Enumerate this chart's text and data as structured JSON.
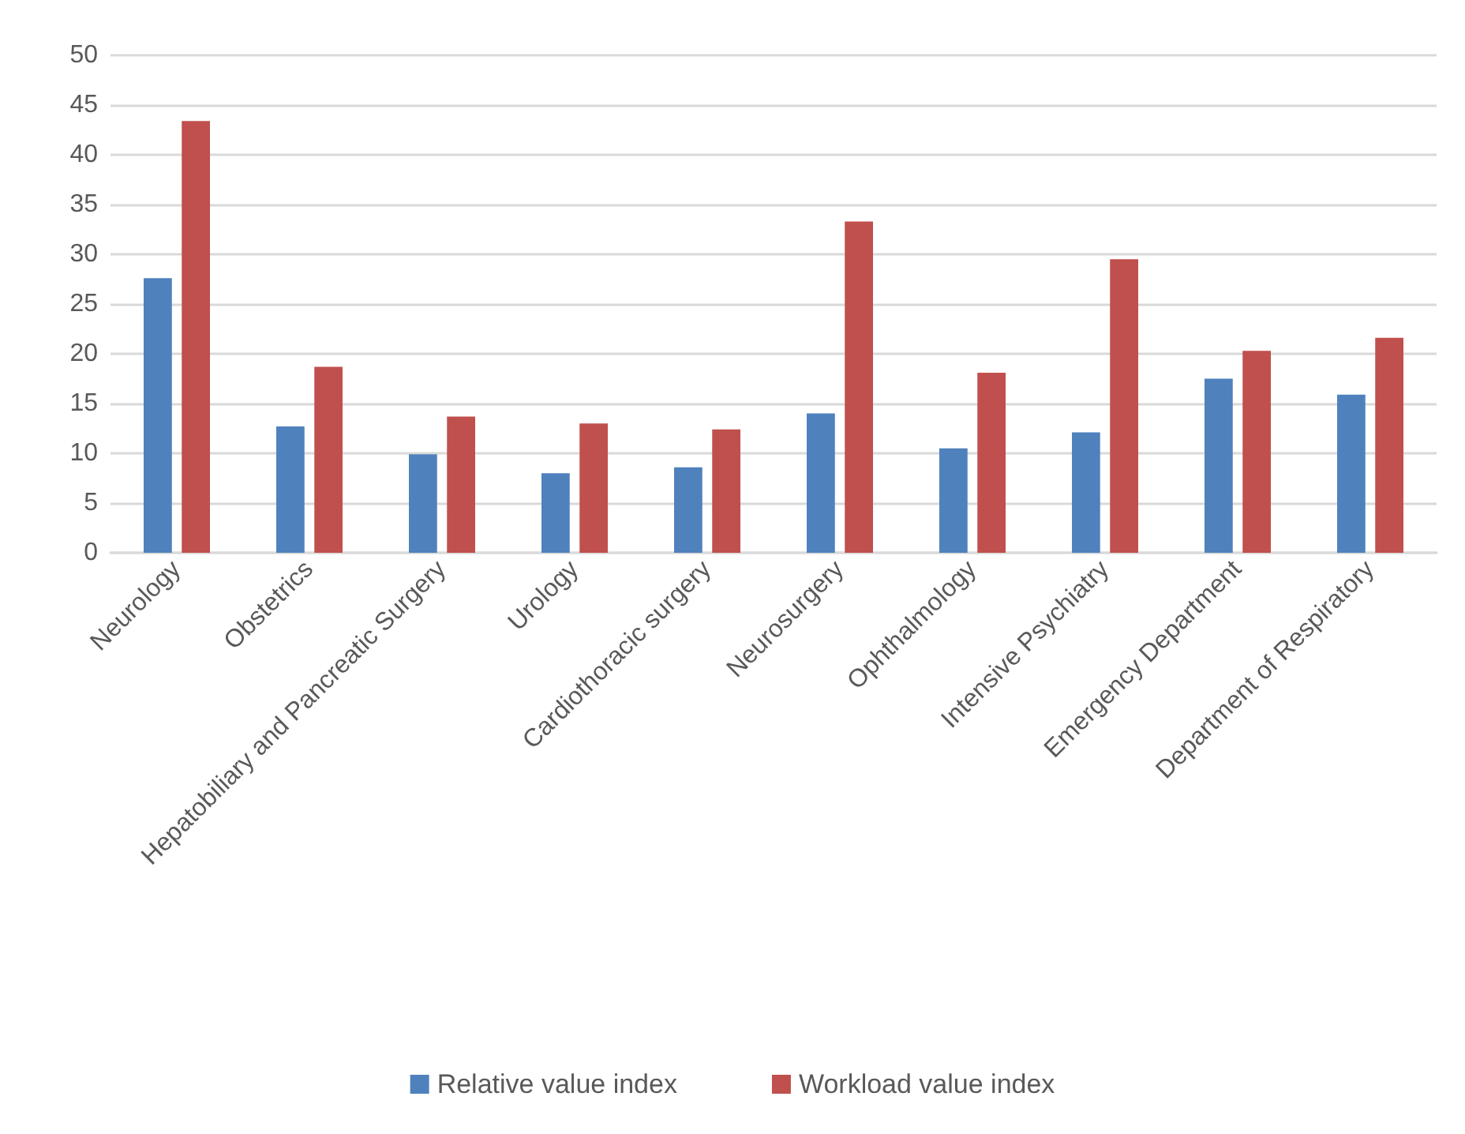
{
  "chart_data": {
    "type": "bar",
    "categories": [
      "Neurology",
      "Obstetrics",
      "Hepatobiliary and Pancreatic Surgery",
      "Urology",
      "Cardiothoracic surgery",
      "Neurosurgery",
      "Ophthalmology",
      "Intensive Psychiatry",
      "Emergency Department",
      "Department of Respiratory"
    ],
    "series": [
      {
        "name": "Relative value index",
        "color": "#4f81bd",
        "values": [
          27.6,
          12.7,
          9.9,
          8.0,
          8.6,
          14.0,
          10.5,
          12.1,
          17.5,
          15.9
        ]
      },
      {
        "name": "Workload value index",
        "color": "#c0504d",
        "values": [
          43.4,
          18.7,
          13.7,
          13.0,
          12.4,
          33.3,
          18.1,
          29.5,
          20.3,
          21.6
        ]
      }
    ],
    "ylim": [
      0,
      50
    ],
    "yticks": [
      0,
      5,
      10,
      15,
      20,
      25,
      30,
      35,
      40,
      45,
      50
    ],
    "grid": "y",
    "legend": "bottom"
  }
}
